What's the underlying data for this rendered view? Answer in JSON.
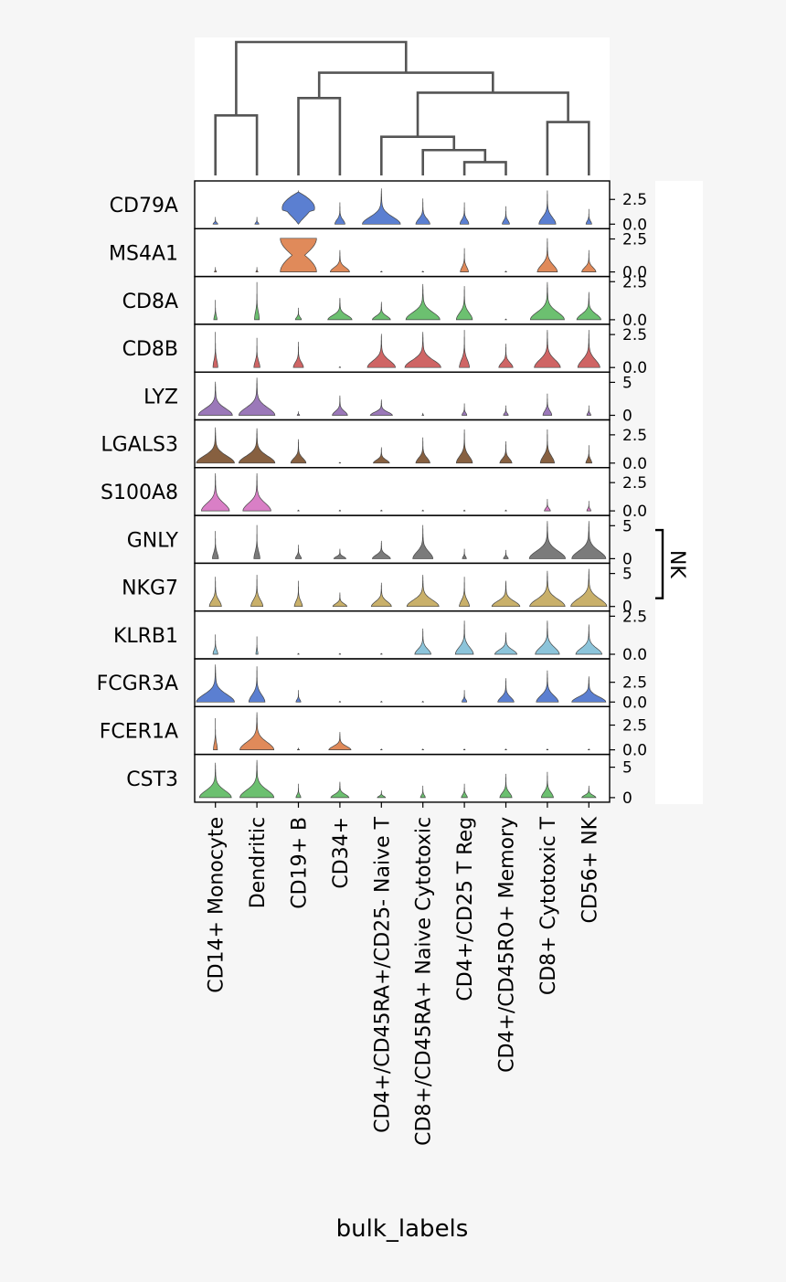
{
  "chart_data": {
    "type": "stacked_violin",
    "xlabel": "bulk_labels",
    "categories": [
      "CD14+ Monocyte",
      "Dendritic",
      "CD19+ B",
      "CD34+",
      "CD4+/CD45RA+/CD25- Naive T",
      "CD8+/CD45RA+ Naive Cytotoxic",
      "CD4+/CD25 T Reg",
      "CD4+/CD45RO+ Memory",
      "CD8+ Cytotoxic T",
      "CD56+ NK"
    ],
    "dendrogram": {
      "leaf_order": [
        "CD14+ Monocyte",
        "Dendritic",
        "CD19+ B",
        "CD34+",
        "CD4+/CD45RA+/CD25- Naive T",
        "CD8+/CD45RA+ Naive Cytotoxic",
        "CD4+/CD25 T Reg",
        "CD4+/CD45RO+ Memory",
        "CD8+ Cytotoxic T",
        "CD56+ NK"
      ],
      "merges": [
        {
          "a": [
            7
          ],
          "b": [
            8
          ],
          "height": 0.1
        },
        {
          "a": [
            6
          ],
          "b": [
            7,
            8
          ],
          "height": 0.19
        },
        {
          "a": [
            5
          ],
          "b": [
            6,
            7,
            8
          ],
          "height": 0.29
        },
        {
          "a": [
            9
          ],
          "b": [
            10
          ],
          "height": 0.4
        },
        {
          "a": [
            1
          ],
          "b": [
            2
          ],
          "height": 0.45
        },
        {
          "a": [
            3
          ],
          "b": [
            4
          ],
          "height": 0.58
        },
        {
          "a": [
            5,
            6,
            7,
            8
          ],
          "b": [
            9,
            10
          ],
          "height": 0.62
        },
        {
          "a": [
            3,
            4
          ],
          "b": [
            5,
            6,
            7,
            8,
            9,
            10
          ],
          "height": 0.77
        },
        {
          "a": [
            1,
            2
          ],
          "b": [
            3,
            4,
            5,
            6,
            7,
            8,
            9,
            10
          ],
          "height": 1.0
        }
      ]
    },
    "genes": [
      {
        "name": "CD79A",
        "color": "#5b7fd1",
        "ymax": 4.0,
        "ticks": [
          "2.5",
          "0.0"
        ],
        "tick_values": [
          2.5,
          0.0
        ],
        "violins": [
          [
            0.12,
            0.18,
            1
          ],
          [
            0.1,
            0.18,
            1
          ],
          [
            0.85,
            0.85,
            3.5
          ],
          [
            0.25,
            0.55,
            1
          ],
          [
            0.95,
            0.9,
            1
          ],
          [
            0.35,
            0.65,
            1
          ],
          [
            0.22,
            0.55,
            1
          ],
          [
            0.18,
            0.45,
            1
          ],
          [
            0.42,
            0.85,
            1
          ],
          [
            0.14,
            0.38,
            1
          ]
        ]
      },
      {
        "name": "MS4A1",
        "color": "#e08a5a",
        "ymax": 3.0,
        "ticks": [
          "2.5",
          "0.0"
        ],
        "tick_values": [
          2.5,
          0.0
        ],
        "violins": [
          [
            0.05,
            0.12,
            1
          ],
          [
            0.05,
            0.12,
            1
          ],
          [
            0.95,
            0.85,
            0.55
          ],
          [
            0.48,
            0.55,
            1
          ],
          [
            0.01,
            0.01,
            1
          ],
          [
            0.02,
            0.01,
            1
          ],
          [
            0.2,
            0.6,
            1
          ],
          [
            0.01,
            0.01,
            1
          ],
          [
            0.5,
            0.85,
            1
          ],
          [
            0.35,
            0.55,
            1
          ]
        ]
      },
      {
        "name": "CD8A",
        "color": "#6cc070",
        "ymax": 2.6,
        "ticks": [
          "2.5",
          "0.0"
        ],
        "tick_values": [
          2.5,
          0.0
        ],
        "violins": [
          [
            0.08,
            0.5,
            1
          ],
          [
            0.12,
            0.95,
            1
          ],
          [
            0.15,
            0.3,
            1
          ],
          [
            0.6,
            0.55,
            1
          ],
          [
            0.45,
            0.45,
            1
          ],
          [
            0.85,
            0.9,
            1
          ],
          [
            0.4,
            0.85,
            1
          ],
          [
            0.02,
            0.02,
            1
          ],
          [
            0.85,
            0.95,
            1
          ],
          [
            0.6,
            0.7,
            1
          ]
        ]
      },
      {
        "name": "CD8B",
        "color": "#cf6565",
        "ymax": 3.0,
        "ticks": [
          "2.5",
          "0.0"
        ],
        "tick_values": [
          2.5,
          0.0
        ],
        "violins": [
          [
            0.12,
            0.9,
            1
          ],
          [
            0.15,
            0.75,
            1
          ],
          [
            0.25,
            0.65,
            1
          ],
          [
            0.02,
            0.02,
            1
          ],
          [
            0.7,
            0.85,
            1
          ],
          [
            0.9,
            0.9,
            1
          ],
          [
            0.25,
            0.95,
            1
          ],
          [
            0.35,
            0.6,
            1
          ],
          [
            0.65,
            0.95,
            1
          ],
          [
            0.55,
            0.95,
            1
          ]
        ]
      },
      {
        "name": "LYZ",
        "color": "#9b78b9",
        "ymax": 6.0,
        "ticks": [
          "5",
          "0"
        ],
        "tick_values": [
          5,
          0
        ],
        "violins": [
          [
            0.85,
            0.85,
            1
          ],
          [
            0.9,
            0.95,
            1
          ],
          [
            0.06,
            0.1,
            1
          ],
          [
            0.38,
            0.5,
            1
          ],
          [
            0.55,
            0.4,
            1
          ],
          [
            0.04,
            0.06,
            1
          ],
          [
            0.12,
            0.3,
            1
          ],
          [
            0.12,
            0.25,
            1
          ],
          [
            0.22,
            0.55,
            1
          ],
          [
            0.1,
            0.25,
            1
          ]
        ]
      },
      {
        "name": "LGALS3",
        "color": "#876040",
        "ymax": 3.5,
        "ticks": [
          "2.5",
          "0.0"
        ],
        "tick_values": [
          2.5,
          0.0
        ],
        "violins": [
          [
            0.95,
            0.9,
            1
          ],
          [
            0.9,
            0.88,
            1
          ],
          [
            0.38,
            0.6,
            1
          ],
          [
            0.01,
            0.01,
            1
          ],
          [
            0.4,
            0.4,
            1
          ],
          [
            0.35,
            0.65,
            1
          ],
          [
            0.4,
            0.85,
            1
          ],
          [
            0.3,
            0.55,
            1
          ],
          [
            0.35,
            0.85,
            1
          ],
          [
            0.15,
            0.45,
            1
          ]
        ]
      },
      {
        "name": "S100A8",
        "color": "#d97fc6",
        "ymax": 3.5,
        "ticks": [
          "2.5",
          "0.0"
        ],
        "tick_values": [
          2.5,
          0.0
        ],
        "violins": [
          [
            0.7,
            0.95,
            1
          ],
          [
            0.7,
            0.95,
            1
          ],
          [
            0.0,
            0.0,
            1
          ],
          [
            0.0,
            0.0,
            1
          ],
          [
            0.0,
            0.0,
            1
          ],
          [
            0.0,
            0.0,
            1
          ],
          [
            0.0,
            0.0,
            1
          ],
          [
            0.0,
            0.0,
            1
          ],
          [
            0.15,
            0.3,
            1
          ],
          [
            0.1,
            0.25,
            1
          ]
        ]
      },
      {
        "name": "GNLY",
        "color": "#7b7b7b",
        "ymax": 6.0,
        "ticks": [
          "5",
          "0"
        ],
        "tick_values": [
          5,
          0
        ],
        "violins": [
          [
            0.15,
            0.7,
            1
          ],
          [
            0.15,
            0.85,
            1
          ],
          [
            0.15,
            0.35,
            1
          ],
          [
            0.3,
            0.25,
            1
          ],
          [
            0.45,
            0.45,
            1
          ],
          [
            0.5,
            0.85,
            1
          ],
          [
            0.1,
            0.25,
            1
          ],
          [
            0.12,
            0.22,
            1
          ],
          [
            0.9,
            0.95,
            1
          ],
          [
            0.85,
            0.95,
            1
          ]
        ]
      },
      {
        "name": "NKG7",
        "color": "#c9b06a",
        "ymax": 6.0,
        "ticks": [
          "5",
          "0"
        ],
        "tick_values": [
          5,
          0
        ],
        "violins": [
          [
            0.3,
            0.75,
            1
          ],
          [
            0.3,
            0.8,
            1
          ],
          [
            0.2,
            0.65,
            1
          ],
          [
            0.35,
            0.35,
            1
          ],
          [
            0.5,
            0.6,
            1
          ],
          [
            0.8,
            0.8,
            1
          ],
          [
            0.25,
            0.75,
            1
          ],
          [
            0.7,
            0.65,
            1
          ],
          [
            0.88,
            0.9,
            1
          ],
          [
            0.9,
            0.95,
            1
          ]
        ]
      },
      {
        "name": "KLRB1",
        "color": "#8cc4da",
        "ymax": 2.6,
        "ticks": [
          "2.5",
          "0.0"
        ],
        "tick_values": [
          2.5,
          0.0
        ],
        "violins": [
          [
            0.12,
            0.5,
            1
          ],
          [
            0.05,
            0.45,
            1
          ],
          [
            0.02,
            0.02,
            1
          ],
          [
            0.02,
            0.02,
            1
          ],
          [
            0.02,
            0.02,
            1
          ],
          [
            0.4,
            0.65,
            1
          ],
          [
            0.45,
            0.85,
            1
          ],
          [
            0.55,
            0.55,
            1
          ],
          [
            0.6,
            0.85,
            1
          ],
          [
            0.65,
            0.75,
            1
          ]
        ]
      },
      {
        "name": "FCGR3A",
        "color": "#5b7fd1",
        "ymax": 5.0,
        "ticks": [
          "2.5",
          "0.0"
        ],
        "tick_values": [
          2.5,
          0.0
        ],
        "violins": [
          [
            0.95,
            0.95,
            1
          ],
          [
            0.4,
            0.9,
            1
          ],
          [
            0.12,
            0.3,
            1
          ],
          [
            0.02,
            0.03,
            1
          ],
          [
            0.02,
            0.03,
            1
          ],
          [
            0.02,
            0.03,
            1
          ],
          [
            0.12,
            0.3,
            1
          ],
          [
            0.4,
            0.6,
            1
          ],
          [
            0.55,
            0.8,
            1
          ],
          [
            0.85,
            0.65,
            1
          ]
        ]
      },
      {
        "name": "FCER1A",
        "color": "#e08a5a",
        "ymax": 4.0,
        "ticks": [
          "2.5",
          "0.0"
        ],
        "tick_values": [
          2.5,
          0.0
        ],
        "violins": [
          [
            0.1,
            0.8,
            1
          ],
          [
            0.85,
            0.95,
            1
          ],
          [
            0.05,
            0.05,
            1
          ],
          [
            0.55,
            0.45,
            1
          ],
          [
            0.01,
            0.01,
            1
          ],
          [
            0.01,
            0.01,
            1
          ],
          [
            0.01,
            0.01,
            1
          ],
          [
            0.01,
            0.01,
            1
          ],
          [
            0.01,
            0.01,
            1
          ],
          [
            0.01,
            0.01,
            1
          ]
        ]
      },
      {
        "name": "CST3",
        "color": "#6cc070",
        "ymax": 6.5,
        "ticks": [
          "5",
          "0"
        ],
        "tick_values": [
          5,
          0
        ],
        "violins": [
          [
            0.8,
            0.88,
            1
          ],
          [
            0.85,
            0.95,
            1
          ],
          [
            0.12,
            0.35,
            1
          ],
          [
            0.45,
            0.4,
            1
          ],
          [
            0.2,
            0.18,
            1
          ],
          [
            0.12,
            0.3,
            1
          ],
          [
            0.15,
            0.35,
            1
          ],
          [
            0.3,
            0.6,
            1
          ],
          [
            0.3,
            0.65,
            1
          ],
          [
            0.35,
            0.3,
            1
          ]
        ]
      }
    ],
    "group_bracket": {
      "label": "NK",
      "genes": [
        "GNLY",
        "NKG7"
      ]
    }
  }
}
